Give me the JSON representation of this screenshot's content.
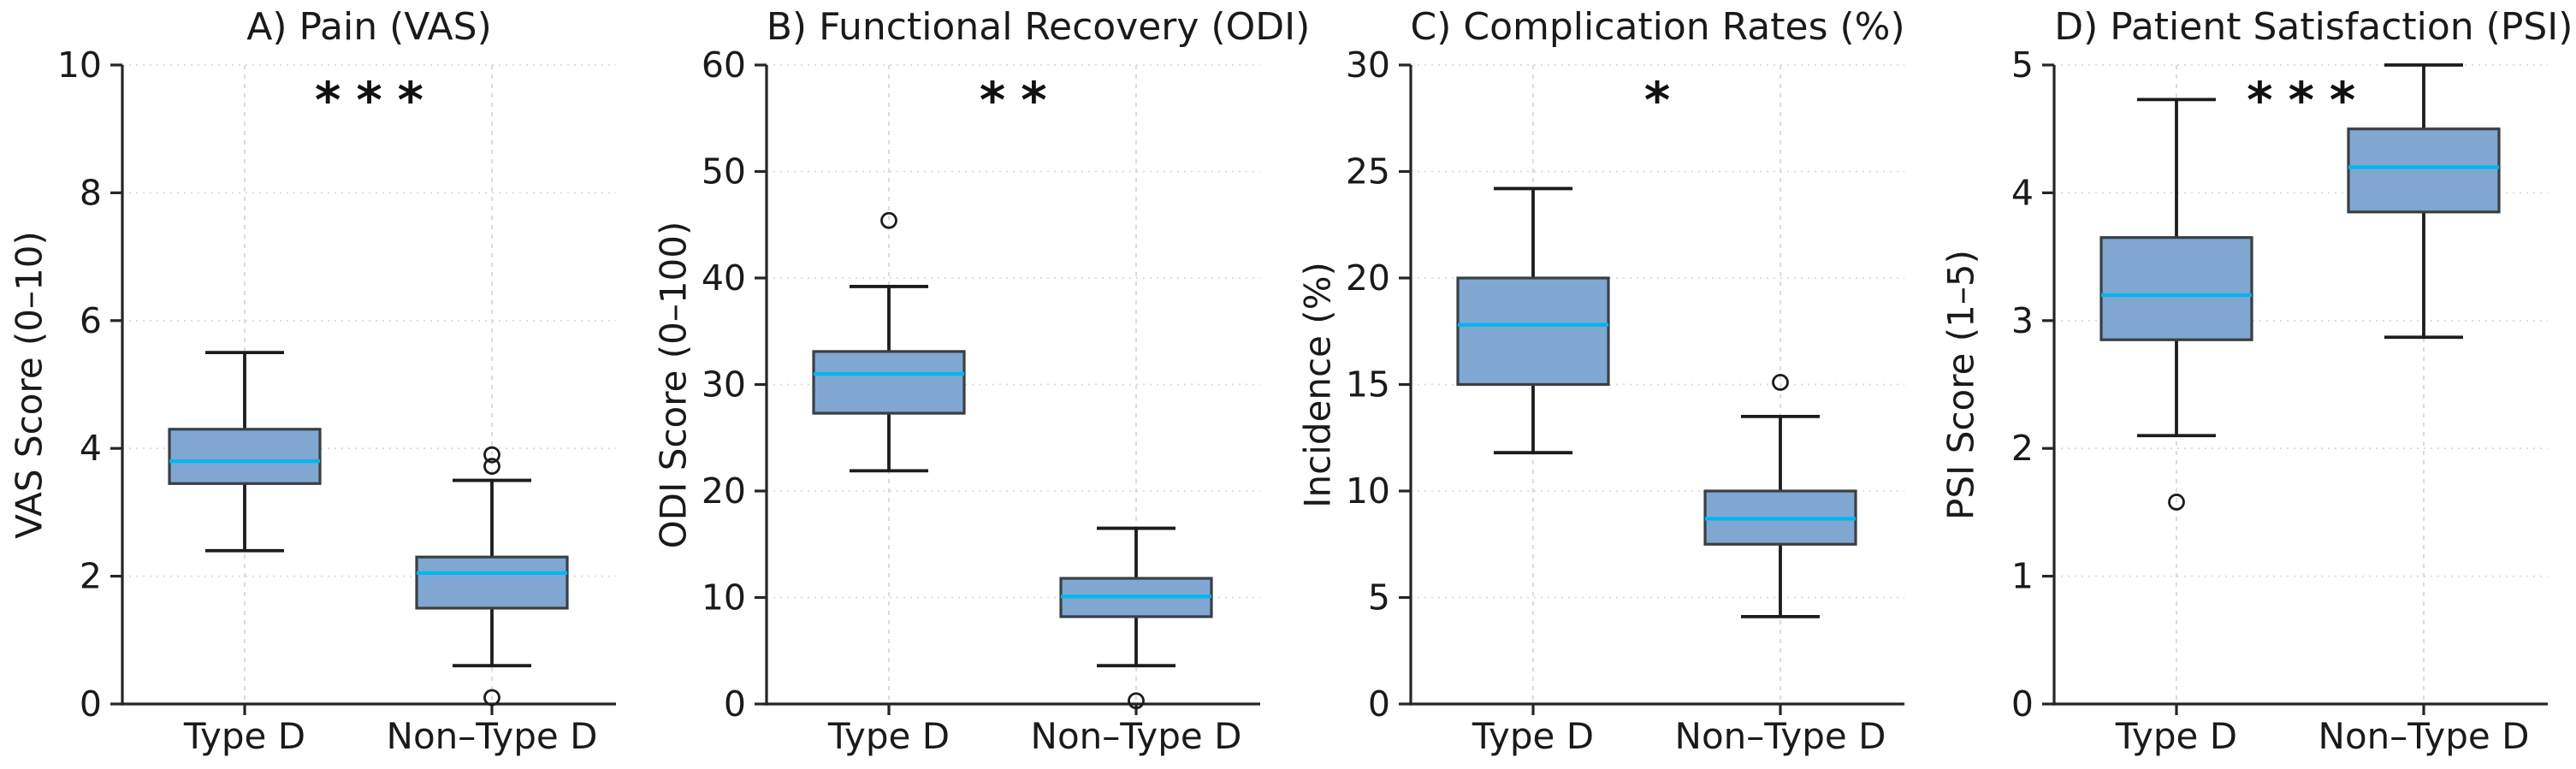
{
  "figure": {
    "background": "#FFFFFF"
  },
  "style": {
    "box_fill": "#7FA7D1",
    "box_edge": "#3A3F44",
    "median_line": "#00B6F0",
    "whisker": "#1C1C1C",
    "outlier_edge": "#1C1C1C",
    "grid": "#D9D9D9",
    "axis": "#262626",
    "text": "#1A1A1A"
  },
  "chart_data": [
    {
      "type": "box",
      "title": "A) Pain (VAS)",
      "ylabel": "VAS Score (0–10)",
      "ylim": [
        0,
        10
      ],
      "yticks": [
        0,
        2,
        4,
        6,
        8,
        10
      ],
      "significance": "***",
      "grid": "dotted horizontal + dashed vertical at categories",
      "legend_position": "none",
      "categories": [
        "Type D",
        "Non–Type D"
      ],
      "series": [
        {
          "name": "Type D",
          "whisker_low": 2.4,
          "q1": 3.45,
          "median": 3.8,
          "q3": 4.3,
          "whisker_high": 5.5,
          "outliers": []
        },
        {
          "name": "Non–Type D",
          "whisker_low": 0.6,
          "q1": 1.5,
          "median": 2.05,
          "q3": 2.3,
          "whisker_high": 3.5,
          "outliers": [
            3.9,
            3.72,
            0.1
          ]
        }
      ]
    },
    {
      "type": "box",
      "title": "B) Functional Recovery (ODI)",
      "ylabel": "ODI Score (0–100)",
      "ylim": [
        0,
        60
      ],
      "yticks": [
        0,
        10,
        20,
        30,
        40,
        50,
        60
      ],
      "significance": "**",
      "grid": "dotted horizontal + dashed vertical at categories",
      "legend_position": "none",
      "categories": [
        "Type D",
        "Non–Type D"
      ],
      "series": [
        {
          "name": "Type D",
          "whisker_low": 21.9,
          "q1": 27.3,
          "median": 31.0,
          "q3": 33.1,
          "whisker_high": 39.2,
          "outliers": [
            45.4
          ]
        },
        {
          "name": "Non–Type D",
          "whisker_low": 3.6,
          "q1": 8.2,
          "median": 10.1,
          "q3": 11.8,
          "whisker_high": 16.5,
          "outliers": [
            0.3
          ]
        }
      ]
    },
    {
      "type": "box",
      "title": "C) Complication Rates (%)",
      "ylabel": "Incidence (%)",
      "ylim": [
        0,
        30
      ],
      "yticks": [
        0,
        5,
        10,
        15,
        20,
        25,
        30
      ],
      "significance": "*",
      "grid": "dotted horizontal + dashed vertical at categories",
      "legend_position": "none",
      "categories": [
        "Type D",
        "Non–Type D"
      ],
      "series": [
        {
          "name": "Type D",
          "whisker_low": 11.8,
          "q1": 15.0,
          "median": 17.8,
          "q3": 20.0,
          "whisker_high": 24.2,
          "outliers": []
        },
        {
          "name": "Non–Type D",
          "whisker_low": 4.1,
          "q1": 7.5,
          "median": 8.7,
          "q3": 10.0,
          "whisker_high": 13.5,
          "outliers": [
            15.1
          ]
        }
      ]
    },
    {
      "type": "box",
      "title": "D) Patient Satisfaction (PSI)",
      "ylabel": "PSI Score (1–5)",
      "ylim": [
        0,
        5
      ],
      "yticks": [
        0,
        1,
        2,
        3,
        4,
        5
      ],
      "significance": "***",
      "grid": "dotted horizontal + dashed vertical at categories",
      "legend_position": "none",
      "categories": [
        "Type D",
        "Non–Type D"
      ],
      "series": [
        {
          "name": "Type D",
          "whisker_low": 2.1,
          "q1": 2.85,
          "median": 3.2,
          "q3": 3.65,
          "whisker_high": 4.73,
          "outliers": [
            1.58
          ]
        },
        {
          "name": "Non–Type D",
          "whisker_low": 2.87,
          "q1": 3.85,
          "median": 4.2,
          "q3": 4.5,
          "whisker_high": 5.0,
          "outliers": []
        }
      ]
    }
  ]
}
